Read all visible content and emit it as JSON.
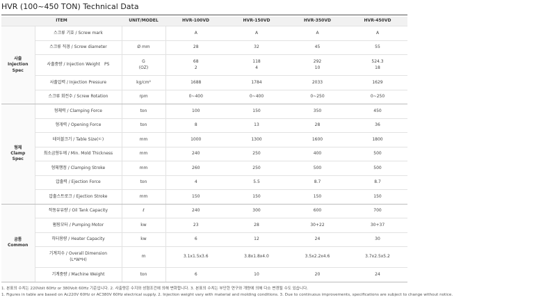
{
  "title": "HVR (100~450 TON) Technical Data",
  "table": {
    "header": [
      "ITEM",
      "UNIT/MODEL",
      "HVR-100VD",
      "HVR-150VD",
      "HVR-350VD",
      "HVR-450VD"
    ],
    "groups": [
      {
        "label": "사출\nInjection\nSpec",
        "rows": [
          {
            "item": "스크류 기호 / Screw mark",
            "values": [
              "A",
              "A",
              "A",
              "A"
            ]
          },
          {
            "item": "스크류 직경 / Screw diameter",
            "unit": "Ø mm",
            "values": [
              "28",
              "32",
              "45",
              "55"
            ]
          },
          {
            "item": "사출중량 / Injection Weight",
            "sub": "PS",
            "unit": "G\n(OZ)",
            "values": [
              "68\n2",
              "118\n4",
              "292\n10",
              "524.3\n18"
            ]
          },
          {
            "item": "사출압력 / Injection Pressure",
            "unit": "kg/cm²",
            "values": [
              "1688",
              "1784",
              "2033",
              "1629"
            ]
          },
          {
            "item": "스크류 회전수 / Screw Rotation",
            "unit": "rpm",
            "values": [
              "0~400",
              "0~400",
              "0~250",
              "0~250"
            ]
          }
        ]
      },
      {
        "label": "형체\nClamp\nSpec",
        "rows": [
          {
            "item": "형체력 / Clamping Force",
            "unit": "ton",
            "values": [
              "100",
              "150",
              "350",
              "450"
            ]
          },
          {
            "item": "형개력 / Opening Force",
            "unit": "ton",
            "values": [
              "8",
              "13",
              "28",
              "36"
            ]
          },
          {
            "item": "테이블크기 / Table Size(ㄷ)",
            "unit": "mm",
            "values": [
              "1000",
              "1300",
              "1600",
              "1800"
            ]
          },
          {
            "item": "최소금형두께 / Min. Mold Thickness",
            "unit": "mm",
            "values": [
              "240",
              "250",
              "400",
              "500"
            ]
          },
          {
            "item": "형체행정 / Clamping Stroke",
            "unit": "mm",
            "values": [
              "260",
              "250",
              "500",
              "500"
            ]
          },
          {
            "item": "압출력 / Ejection Force",
            "unit": "ton",
            "values": [
              "4",
              "5.5",
              "8.7",
              "8.7"
            ]
          },
          {
            "item": "압출스트로크 / Ejection Stroke",
            "unit": "mm",
            "values": [
              "150",
              "150",
              "150",
              "150"
            ]
          }
        ]
      },
      {
        "label": "공통\nCommon",
        "rows": [
          {
            "item": "작동유유량 / Oil Tank Capacity",
            "unit": "ℓ",
            "values": [
              "240",
              "300",
              "600",
              "700"
            ]
          },
          {
            "item": "펌핑모터 / Pumping Motor",
            "unit": "kw",
            "values": [
              "23",
              "28",
              "30+22",
              "30+37"
            ]
          },
          {
            "item": "히터용량 / Heater Capacity",
            "unit": "kw",
            "values": [
              "6",
              "12",
              "24",
              "30"
            ]
          },
          {
            "item": "기계치수 / Overall Dimension\n(L*W*H)",
            "unit": "m",
            "values": [
              "3.1x1.5x3.6",
              "3.8x1.8x4.0",
              "3.5x2.2x4.6",
              "3.7x2.5x5.2"
            ]
          },
          {
            "item": "기계중량 / Machine Weight",
            "unit": "ton",
            "values": [
              "6",
              "10",
              "20",
              "24"
            ]
          }
        ]
      }
    ]
  },
  "notes": [
    "1. 본표의 수치는 220Volt 60Hz or 380Volt 60Hz 기준입니다. 2. 사출량은 수지와 성형조건에 의해 변화합니다. 3. 본표의 수치는 부단한 연구와 개량에 의해 다소 변경될 수도 있습니다.",
    "1. Figures in table are based on Ac220V 60Hz or AC380V 60Hz electrical supply. 2. Injection weight vary with material and molding conditions. 3. Due to continuous improvements, specifications are subject to change without notice."
  ]
}
